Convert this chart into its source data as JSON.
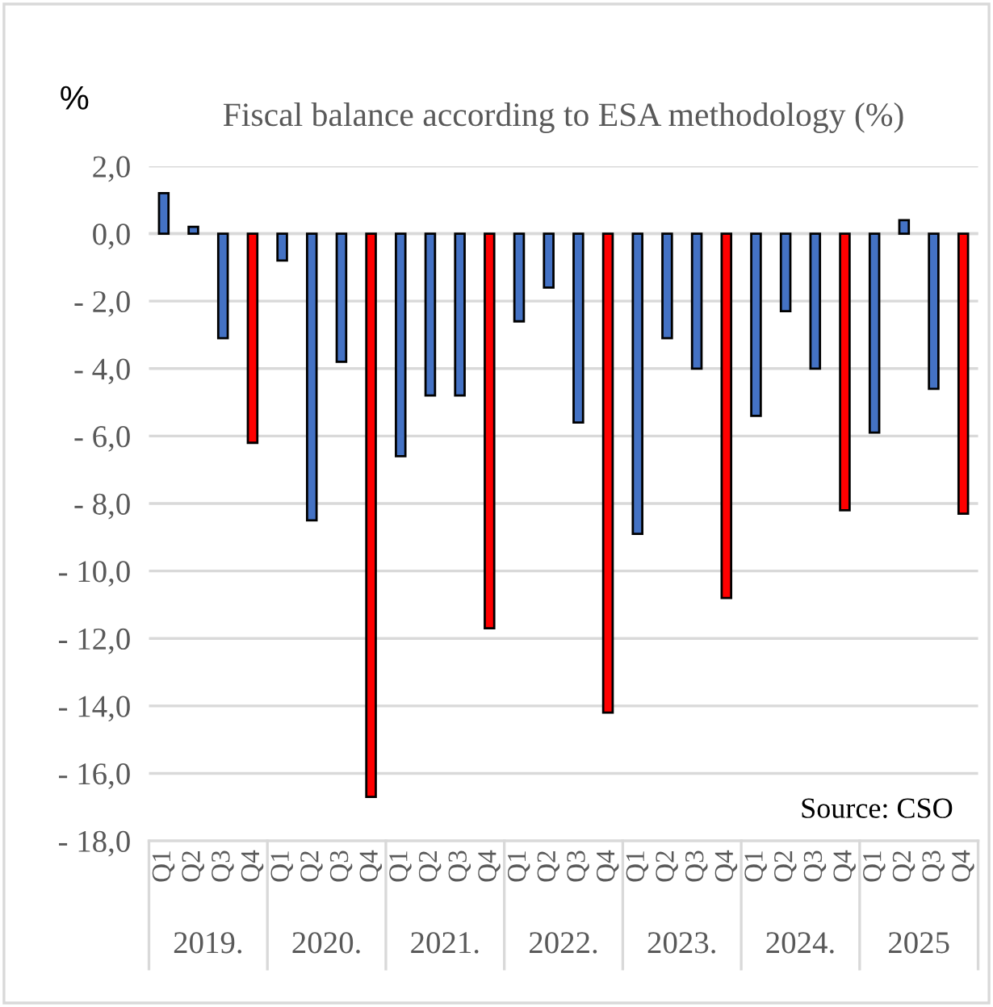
{
  "chart_data": {
    "type": "bar",
    "title": "Fiscal balance according to ESA methodology (%)",
    "ylabel": "%",
    "categories": [
      "Q1",
      "Q2",
      "Q3",
      "Q4",
      "Q1",
      "Q2",
      "Q3",
      "Q4",
      "Q1",
      "Q2",
      "Q3",
      "Q4",
      "Q1",
      "Q2",
      "Q3",
      "Q4",
      "Q1",
      "Q2",
      "Q3",
      "Q4",
      "Q1",
      "Q2",
      "Q3",
      "Q4",
      "Q1",
      "Q2",
      "Q3",
      "Q4"
    ],
    "values": [
      1.2,
      0.2,
      -3.1,
      -6.2,
      -0.8,
      -8.5,
      -3.8,
      -16.7,
      -6.6,
      -4.8,
      -4.8,
      -11.7,
      -2.6,
      -1.6,
      -5.6,
      -14.2,
      -8.9,
      -3.1,
      -4.0,
      -10.8,
      -5.4,
      -2.3,
      -4.0,
      -8.2,
      -5.9,
      0.4,
      -4.6,
      -8.3
    ],
    "colors": [
      "#4472c4",
      "#4472c4",
      "#4472c4",
      "#ff0000",
      "#4472c4",
      "#4472c4",
      "#4472c4",
      "#ff0000",
      "#4472c4",
      "#4472c4",
      "#4472c4",
      "#ff0000",
      "#4472c4",
      "#4472c4",
      "#4472c4",
      "#ff0000",
      "#4472c4",
      "#4472c4",
      "#4472c4",
      "#ff0000",
      "#4472c4",
      "#4472c4",
      "#4472c4",
      "#ff0000",
      "#4472c4",
      "#4472c4",
      "#4472c4",
      "#ff0000"
    ],
    "ylim": [
      -18,
      2
    ],
    "yticks": [
      {
        "value": 2,
        "label": "2,0"
      },
      {
        "value": 0,
        "label": "0,0"
      },
      {
        "value": -2,
        "label": "- 2,0"
      },
      {
        "value": -4,
        "label": "- 4,0"
      },
      {
        "value": -6,
        "label": "- 6,0"
      },
      {
        "value": -8,
        "label": "- 8,0"
      },
      {
        "value": -10,
        "label": "- 10,0"
      },
      {
        "value": -12,
        "label": "- 12,0"
      },
      {
        "value": -14,
        "label": "- 14,0"
      },
      {
        "value": -16,
        "label": "- 16,0"
      },
      {
        "value": -18,
        "label": "- 18,0"
      }
    ],
    "grid": "y",
    "annotations": [
      "2019.",
      "2020.",
      "2021.",
      "2022.",
      "2023.",
      "2024.",
      "2025",
      "Source: CSO"
    ]
  }
}
